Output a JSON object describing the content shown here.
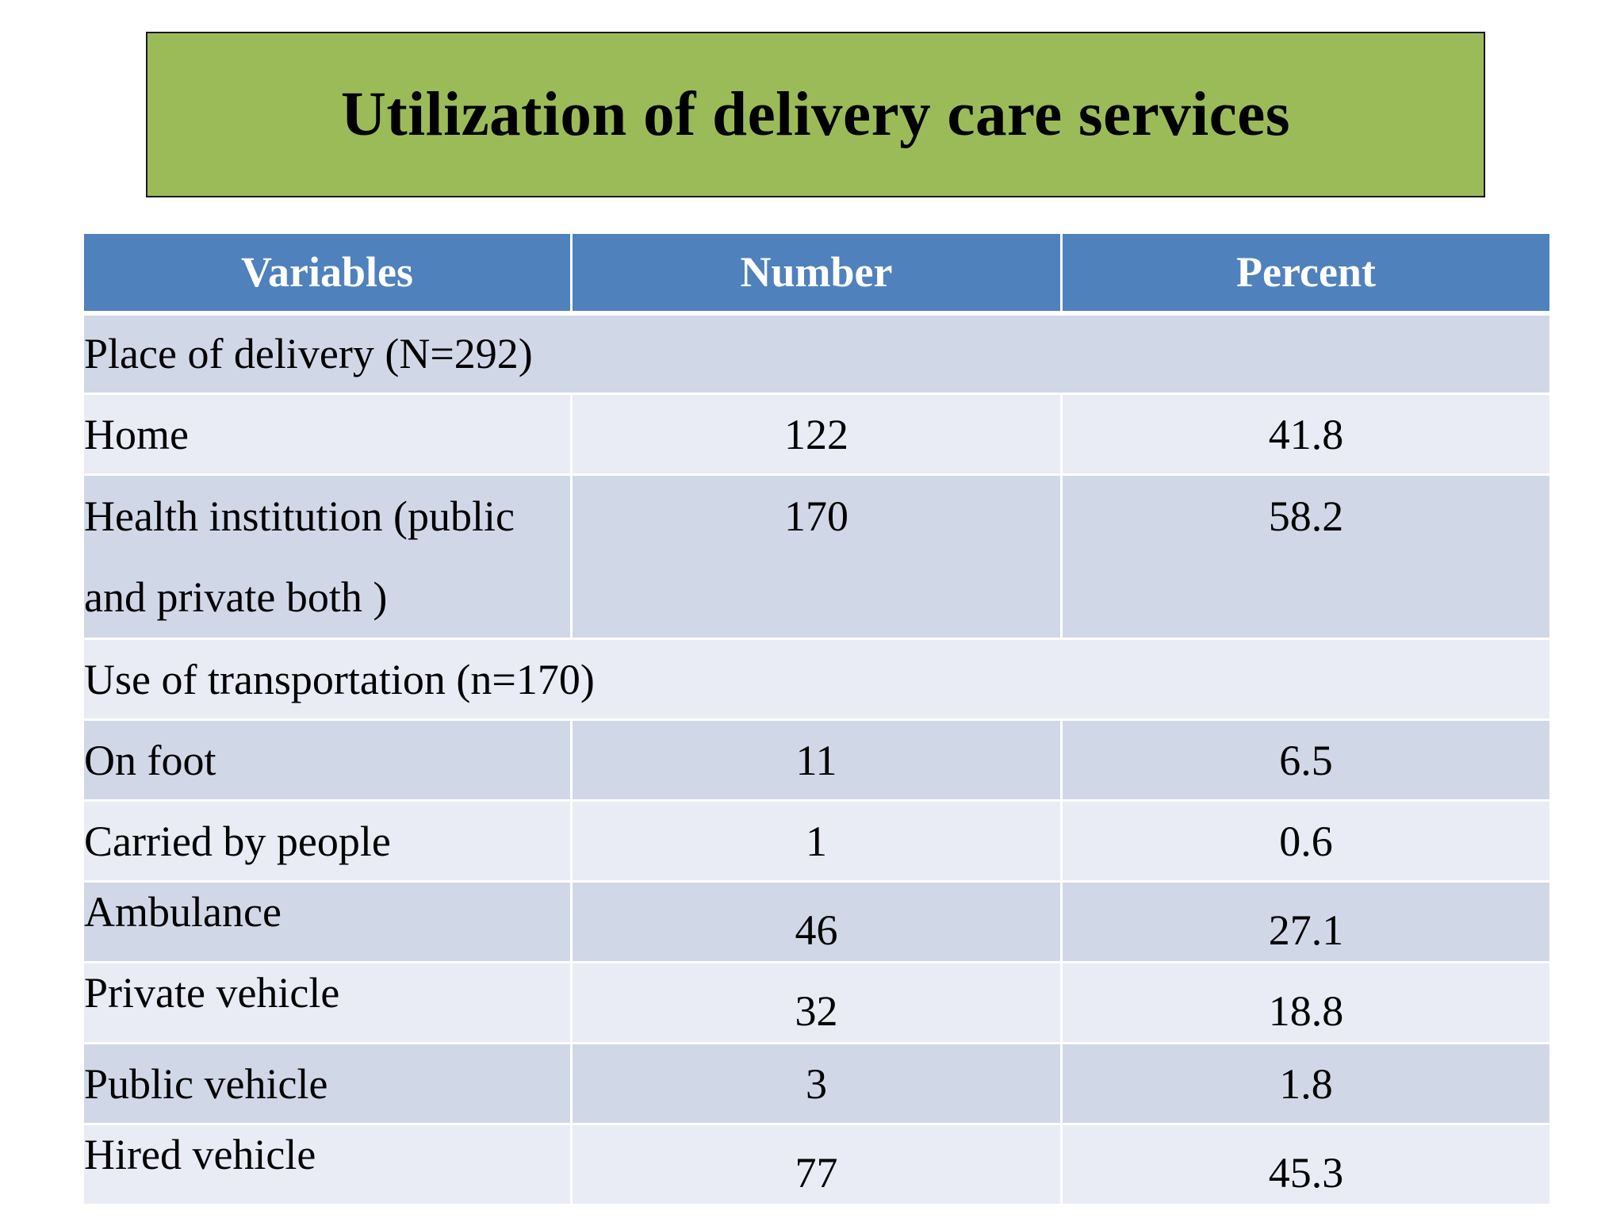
{
  "slide": {
    "title": "Utilization of delivery care services"
  },
  "table": {
    "headers": [
      "Variables",
      "Number",
      "Percent"
    ],
    "rows": [
      {
        "label": "Place of delivery (N=292)",
        "number": "",
        "percent": ""
      },
      {
        "label": "Home",
        "number": "122",
        "percent": "41.8"
      },
      {
        "label": "Health institution (public and private both )",
        "number": "170",
        "percent": "58.2"
      },
      {
        "label": "Use of transportation (n=170)",
        "number": "",
        "percent": ""
      },
      {
        "label": "On foot",
        "number": "11",
        "percent": "6.5"
      },
      {
        "label": "Carried by people",
        "number": "1",
        "percent": "0.6"
      },
      {
        "label": "Ambulance",
        "number": "46",
        "percent": "27.1"
      },
      {
        "label": "Private vehicle",
        "number": "32",
        "percent": "18.8"
      },
      {
        "label": "Public vehicle",
        "number": "3",
        "percent": "1.8"
      },
      {
        "label": "Hired vehicle",
        "number": "77",
        "percent": "45.3"
      }
    ]
  },
  "colors": {
    "title_background": "#9bbb59",
    "header_background": "#4f81bd",
    "row_dark": "#d0d8e8",
    "row_light": "#e9ebf5"
  }
}
